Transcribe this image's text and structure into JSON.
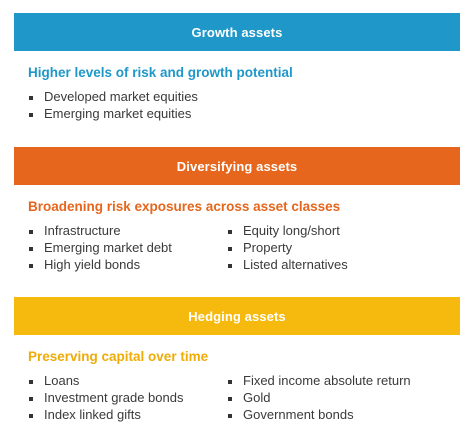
{
  "sections": [
    {
      "title": "Growth assets",
      "subtitle": "Higher levels of risk and growth potential",
      "color": "#1f97c9",
      "col1": [
        "Developed market equities",
        "Emerging market equities"
      ],
      "col2": []
    },
    {
      "title": "Diversifying assets",
      "subtitle": "Broadening risk exposures across asset classes",
      "color": "#e5661c",
      "col1": [
        "Infrastructure",
        "Emerging market debt",
        "High yield bonds"
      ],
      "col2": [
        "Equity long/short",
        "Property",
        "Listed alternatives"
      ]
    },
    {
      "title": "Hedging assets",
      "subtitle": "Preserving capital over time",
      "color": "#f6b90d",
      "col1": [
        "Loans",
        "Investment grade bonds",
        "Index linked gifts"
      ],
      "col2": [
        "Fixed income absolute return",
        "Gold",
        "Government bonds"
      ]
    }
  ]
}
